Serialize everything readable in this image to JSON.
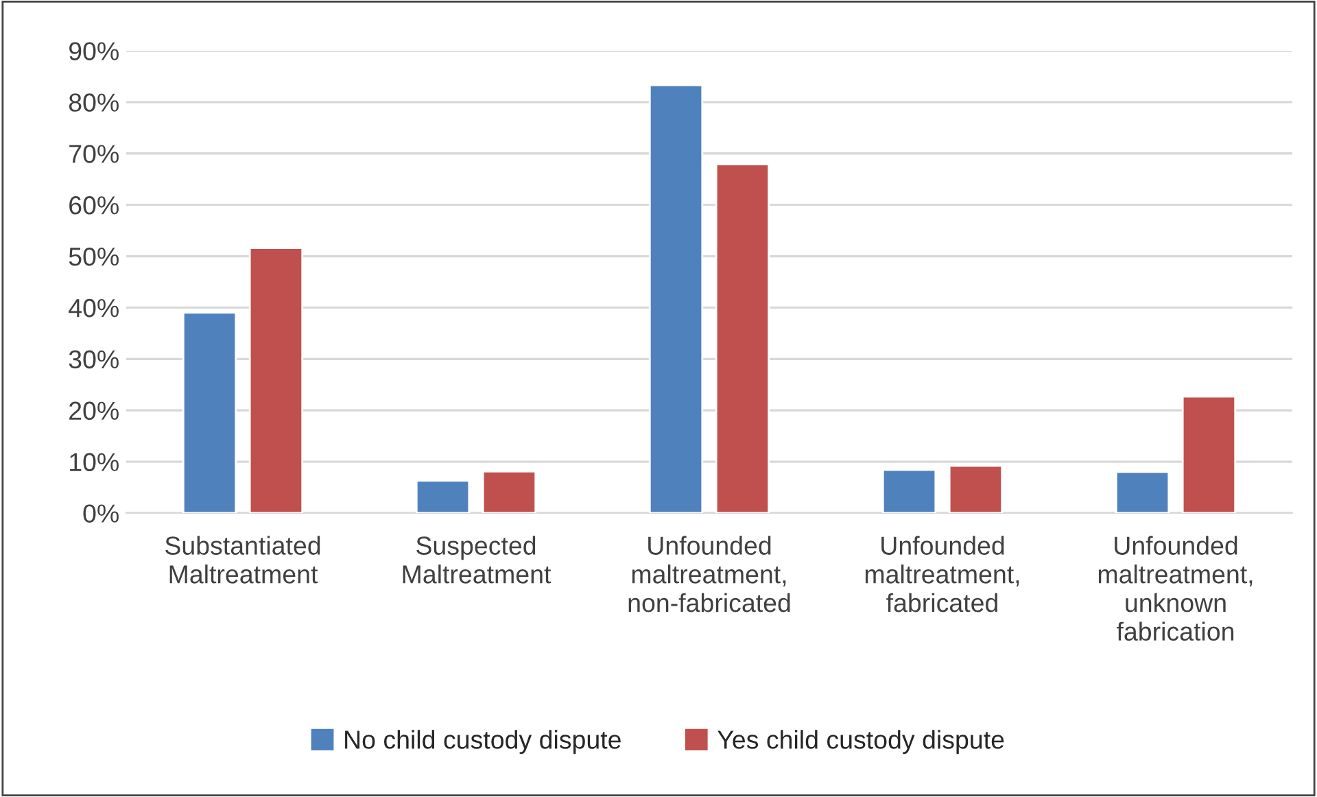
{
  "chart_data": {
    "type": "bar",
    "categories": [
      "Substantiated\nMaltreatment",
      "Suspected\nMaltreatment",
      "Unfounded\nmaltreatment,\nnon-fabricated",
      "Unfounded\nmaltreatment,\nfabricated",
      "Unfounded\nmaltreatment,\nunknown\nfabrication"
    ],
    "series": [
      {
        "name": "No child custody dispute",
        "color": "#4f81bd",
        "values": [
          39.0,
          6.3,
          83.3,
          8.4,
          8.0
        ]
      },
      {
        "name": "Yes child custody dispute",
        "color": "#c0504d",
        "values": [
          51.6,
          8.1,
          67.9,
          9.2,
          22.7
        ]
      }
    ],
    "ylim": [
      0,
      90
    ],
    "yticks": [
      {
        "value": 0,
        "label": "0%"
      },
      {
        "value": 10,
        "label": "10%"
      },
      {
        "value": 20,
        "label": "20%"
      },
      {
        "value": 30,
        "label": "30%"
      },
      {
        "value": 40,
        "label": "40%"
      },
      {
        "value": 50,
        "label": "50%"
      },
      {
        "value": 60,
        "label": "60%"
      },
      {
        "value": 70,
        "label": "70%"
      },
      {
        "value": 80,
        "label": "80%"
      },
      {
        "value": 90,
        "label": "90%"
      }
    ],
    "grid": "y",
    "legend": "bottom"
  }
}
